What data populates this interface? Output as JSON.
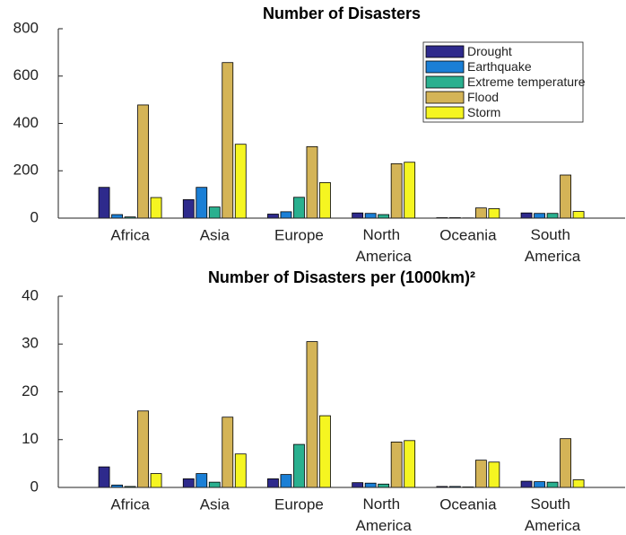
{
  "chart_data": [
    {
      "type": "bar",
      "title": "Number of Disasters",
      "categories": [
        "Africa",
        "Asia",
        "Europe",
        "North America",
        "Oceania",
        "South America"
      ],
      "series": [
        {
          "name": "Drought",
          "color": "#2e2a8c",
          "values": [
            130,
            78,
            17,
            22,
            2,
            22
          ]
        },
        {
          "name": "Earthquake",
          "color": "#1a7fd6",
          "values": [
            15,
            130,
            27,
            20,
            2,
            20
          ]
        },
        {
          "name": "Extreme temperature",
          "color": "#2ab08f",
          "values": [
            5,
            47,
            88,
            15,
            1,
            20
          ]
        },
        {
          "name": "Flood",
          "color": "#d4b457",
          "values": [
            478,
            657,
            302,
            230,
            43,
            182
          ]
        },
        {
          "name": "Storm",
          "color": "#f5f521",
          "values": [
            87,
            312,
            150,
            236,
            40,
            28
          ]
        }
      ],
      "ylim": [
        0,
        800
      ],
      "yticks": [
        0,
        200,
        400,
        600,
        800
      ],
      "legend": "northeast"
    },
    {
      "type": "bar",
      "title": "Number of Disasters per (1000km)²",
      "categories": [
        "Africa",
        "Asia",
        "Europe",
        "North America",
        "Oceania",
        "South America"
      ],
      "series": [
        {
          "name": "Drought",
          "color": "#2e2a8c",
          "values": [
            4.3,
            1.8,
            1.8,
            1,
            0.2,
            1.3
          ]
        },
        {
          "name": "Earthquake",
          "color": "#1a7fd6",
          "values": [
            0.5,
            2.9,
            2.7,
            0.9,
            0.2,
            1.2
          ]
        },
        {
          "name": "Extreme temperature",
          "color": "#2ab08f",
          "values": [
            0.2,
            1.1,
            9,
            0.7,
            0.1,
            1.1
          ]
        },
        {
          "name": "Flood",
          "color": "#d4b457",
          "values": [
            16,
            14.7,
            30.5,
            9.5,
            5.7,
            10.2
          ]
        },
        {
          "name": "Storm",
          "color": "#f5f521",
          "values": [
            2.9,
            7,
            15,
            9.8,
            5.3,
            1.6
          ]
        }
      ],
      "ylim": [
        0,
        40
      ],
      "yticks": [
        0,
        10,
        20,
        30,
        40
      ]
    }
  ]
}
